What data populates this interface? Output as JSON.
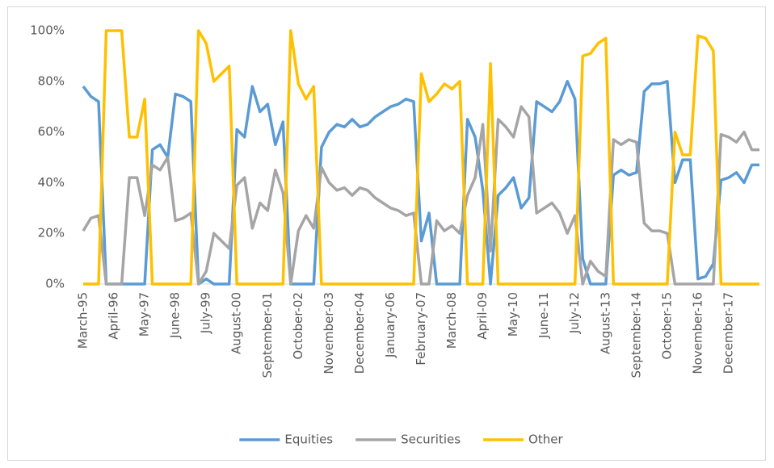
{
  "chart_data": {
    "type": "line",
    "categories": [
      "March-95",
      null,
      null,
      null,
      "April-96",
      null,
      null,
      null,
      "May-97",
      null,
      null,
      null,
      "June-98",
      null,
      null,
      null,
      "July-99",
      null,
      null,
      null,
      "August-00",
      null,
      null,
      null,
      "September-01",
      null,
      null,
      null,
      "October-02",
      null,
      null,
      null,
      "November-03",
      null,
      null,
      null,
      "December-04",
      null,
      null,
      null,
      "January-06",
      null,
      null,
      null,
      "February-07",
      null,
      null,
      null,
      "March-08",
      null,
      null,
      null,
      "April-09",
      null,
      null,
      null,
      "May-10",
      null,
      null,
      null,
      "June-11",
      null,
      null,
      null,
      "July-12",
      null,
      null,
      null,
      "August-13",
      null,
      null,
      null,
      "September-14",
      null,
      null,
      null,
      "October-15",
      null,
      null,
      null,
      "November-16",
      null,
      null,
      null,
      "December-17",
      null,
      null,
      null,
      null
    ],
    "series": [
      {
        "name": "Equities",
        "color": "#5b9bd5",
        "values": [
          78,
          74,
          72,
          0,
          0,
          0,
          0,
          0,
          0,
          53,
          55,
          50,
          75,
          74,
          72,
          0,
          2,
          0,
          0,
          0,
          61,
          58,
          78,
          68,
          71,
          55,
          64,
          0,
          0,
          0,
          0,
          54,
          60,
          63,
          62,
          65,
          62,
          63,
          66,
          68,
          70,
          71,
          73,
          72,
          17,
          28,
          0,
          0,
          0,
          0,
          65,
          58,
          37,
          0,
          35,
          38,
          42,
          30,
          34,
          72,
          70,
          68,
          72,
          80,
          73,
          10,
          0,
          0,
          0,
          43,
          45,
          43,
          44,
          76,
          79,
          79,
          80,
          40,
          49,
          49,
          2,
          3,
          8,
          41,
          42,
          44,
          40,
          47,
          47
        ]
      },
      {
        "name": "Securities",
        "color": "#a5a5a5",
        "values": [
          21,
          26,
          27,
          0,
          0,
          0,
          42,
          42,
          27,
          47,
          45,
          50,
          25,
          26,
          28,
          0,
          5,
          20,
          17,
          14,
          39,
          42,
          22,
          32,
          29,
          45,
          36,
          0,
          21,
          27,
          22,
          46,
          40,
          37,
          38,
          35,
          38,
          37,
          34,
          32,
          30,
          29,
          27,
          28,
          0,
          0,
          25,
          21,
          23,
          20,
          35,
          42,
          63,
          13,
          65,
          62,
          58,
          70,
          66,
          28,
          30,
          32,
          28,
          20,
          27,
          0,
          9,
          5,
          3,
          57,
          55,
          57,
          56,
          24,
          21,
          21,
          20,
          0,
          0,
          0,
          0,
          0,
          0,
          59,
          58,
          56,
          60,
          53,
          53
        ]
      },
      {
        "name": "Other",
        "color": "#ffc000",
        "values": [
          0,
          0,
          0,
          100,
          100,
          100,
          58,
          58,
          73,
          0,
          0,
          0,
          0,
          0,
          0,
          100,
          95,
          80,
          83,
          86,
          0,
          0,
          0,
          0,
          0,
          0,
          0,
          100,
          79,
          73,
          78,
          0,
          0,
          0,
          0,
          0,
          0,
          0,
          0,
          0,
          0,
          0,
          0,
          0,
          83,
          72,
          75,
          79,
          77,
          80,
          0,
          0,
          0,
          87,
          0,
          0,
          0,
          0,
          0,
          0,
          0,
          0,
          0,
          0,
          0,
          90,
          91,
          95,
          97,
          0,
          0,
          0,
          0,
          0,
          0,
          0,
          0,
          60,
          51,
          51,
          98,
          97,
          92,
          0,
          0,
          0,
          0,
          0,
          0
        ]
      }
    ],
    "ylim": [
      0,
      100
    ],
    "yticks": [
      {
        "value": 0,
        "label": "0%"
      },
      {
        "value": 20,
        "label": "20%"
      },
      {
        "value": 40,
        "label": "40%"
      },
      {
        "value": 60,
        "label": "60%"
      },
      {
        "value": 80,
        "label": "80%"
      },
      {
        "value": 100,
        "label": "100%"
      }
    ],
    "grid": false
  }
}
